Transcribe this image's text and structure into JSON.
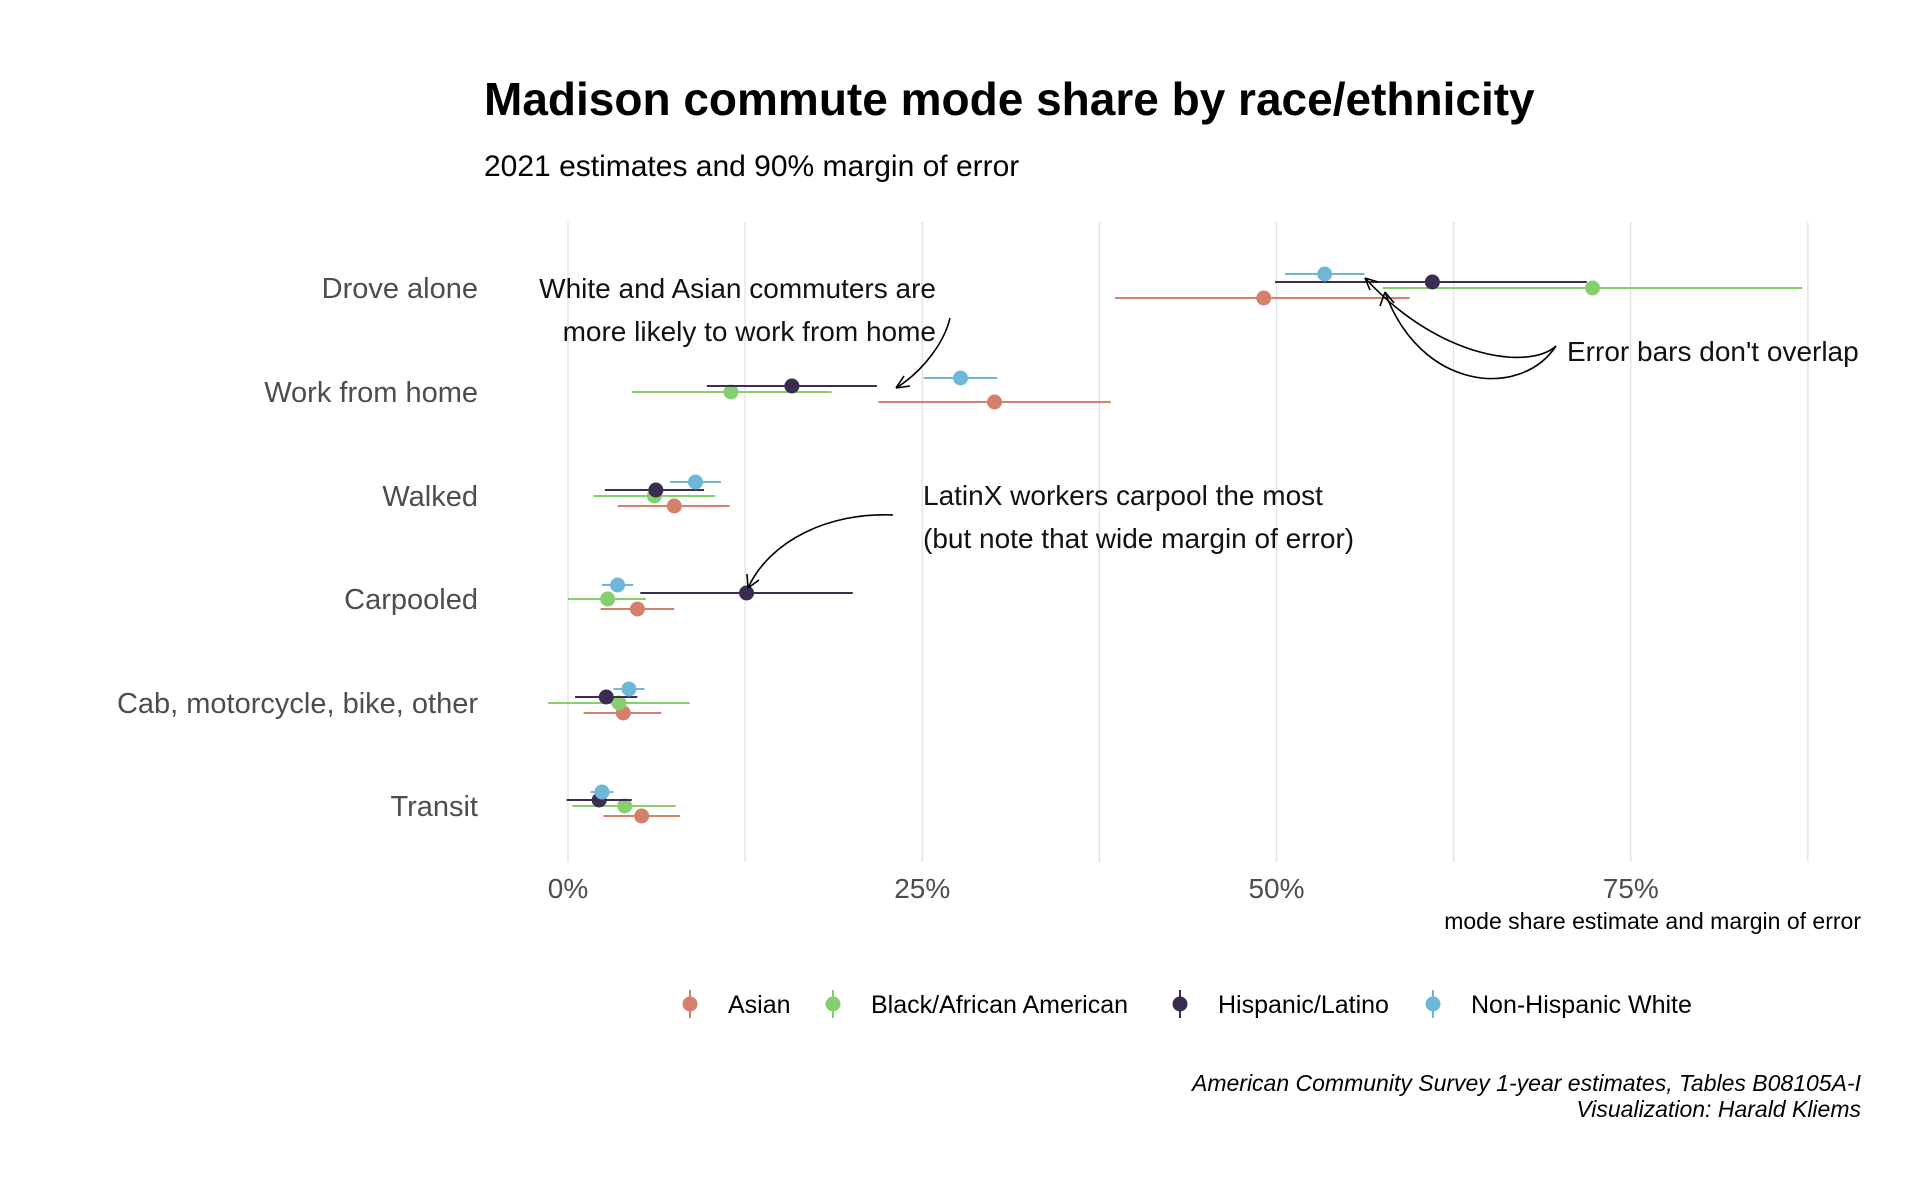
{
  "chart_data": {
    "type": "dot-errorbar",
    "title": "Madison commute mode share by race/ethnicity",
    "subtitle": "2021 estimates and 90% margin of error",
    "xlabel": "mode share estimate and margin of error",
    "x_ticks": [
      "0%",
      "25%",
      "50%",
      "75%"
    ],
    "xlim": [
      -3,
      92
    ],
    "categories": [
      "Drove alone",
      "Work from home",
      "Walked",
      "Carpooled",
      "Cab, motorcycle, bike, other",
      "Transit"
    ],
    "series": [
      {
        "name": "Asian",
        "color": "#d4806d",
        "points": [
          {
            "category": "Drove alone",
            "estimate": 49.1,
            "moe_low": 38.6,
            "moe_high": 59.4
          },
          {
            "category": "Work from home",
            "estimate": 30.1,
            "moe_low": 21.9,
            "moe_high": 38.3
          },
          {
            "category": "Walked",
            "estimate": 7.5,
            "moe_low": 3.5,
            "moe_high": 11.4
          },
          {
            "category": "Carpooled",
            "estimate": 4.9,
            "moe_low": 2.3,
            "moe_high": 7.5
          },
          {
            "category": "Cab, motorcycle, bike, other",
            "estimate": 3.9,
            "moe_low": 1.1,
            "moe_high": 6.6
          },
          {
            "category": "Transit",
            "estimate": 5.2,
            "moe_low": 2.5,
            "moe_high": 7.9
          }
        ]
      },
      {
        "name": "Black/African American",
        "color": "#86cf6d",
        "points": [
          {
            "category": "Drove alone",
            "estimate": 72.3,
            "moe_low": 57.5,
            "moe_high": 87.1
          },
          {
            "category": "Work from home",
            "estimate": 11.5,
            "moe_low": 4.5,
            "moe_high": 18.6
          },
          {
            "category": "Walked",
            "estimate": 6.1,
            "moe_low": 1.8,
            "moe_high": 10.4
          },
          {
            "category": "Carpooled",
            "estimate": 2.8,
            "moe_low": 0.0,
            "moe_high": 5.5
          },
          {
            "category": "Cab, motorcycle, bike, other",
            "estimate": 3.6,
            "moe_low": -1.4,
            "moe_high": 8.6
          },
          {
            "category": "Transit",
            "estimate": 4.0,
            "moe_low": 0.3,
            "moe_high": 7.6
          }
        ]
      },
      {
        "name": "Hispanic/Latino",
        "color": "#3b2d52",
        "points": [
          {
            "category": "Drove alone",
            "estimate": 61.0,
            "moe_low": 49.9,
            "moe_high": 71.9
          },
          {
            "category": "Work from home",
            "estimate": 15.8,
            "moe_low": 9.8,
            "moe_high": 21.8
          },
          {
            "category": "Walked",
            "estimate": 6.2,
            "moe_low": 2.6,
            "moe_high": 9.6
          },
          {
            "category": "Carpooled",
            "estimate": 12.6,
            "moe_low": 5.1,
            "moe_high": 20.1
          },
          {
            "category": "Cab, motorcycle, bike, other",
            "estimate": 2.7,
            "moe_low": 0.5,
            "moe_high": 4.9
          },
          {
            "category": "Transit",
            "estimate": 2.2,
            "moe_low": -0.1,
            "moe_high": 4.5
          }
        ]
      },
      {
        "name": "Non-Hispanic White",
        "color": "#6fb7d8",
        "points": [
          {
            "category": "Drove alone",
            "estimate": 53.4,
            "moe_low": 50.6,
            "moe_high": 56.2
          },
          {
            "category": "Work from home",
            "estimate": 27.7,
            "moe_low": 25.1,
            "moe_high": 30.3
          },
          {
            "category": "Walked",
            "estimate": 9.0,
            "moe_low": 7.2,
            "moe_high": 10.8
          },
          {
            "category": "Carpooled",
            "estimate": 3.5,
            "moe_low": 2.4,
            "moe_high": 4.6
          },
          {
            "category": "Cab, motorcycle, bike, other",
            "estimate": 4.3,
            "moe_low": 3.2,
            "moe_high": 5.4
          },
          {
            "category": "Transit",
            "estimate": 2.4,
            "moe_low": 1.6,
            "moe_high": 3.2
          }
        ]
      }
    ],
    "legend_position": "bottom",
    "grid": true,
    "annotations": [
      {
        "lines": [
          "White and Asian commuters are",
          "more likely to work from home"
        ]
      },
      {
        "lines": [
          "Error bars don't overlap"
        ]
      },
      {
        "lines": [
          "LatinX workers carpool the most",
          "(but note that wide margin of error)"
        ]
      }
    ],
    "caption": [
      "American Community Survey 1-year estimates, Tables B08105A-I",
      "Visualization: Harald Kliems"
    ]
  }
}
